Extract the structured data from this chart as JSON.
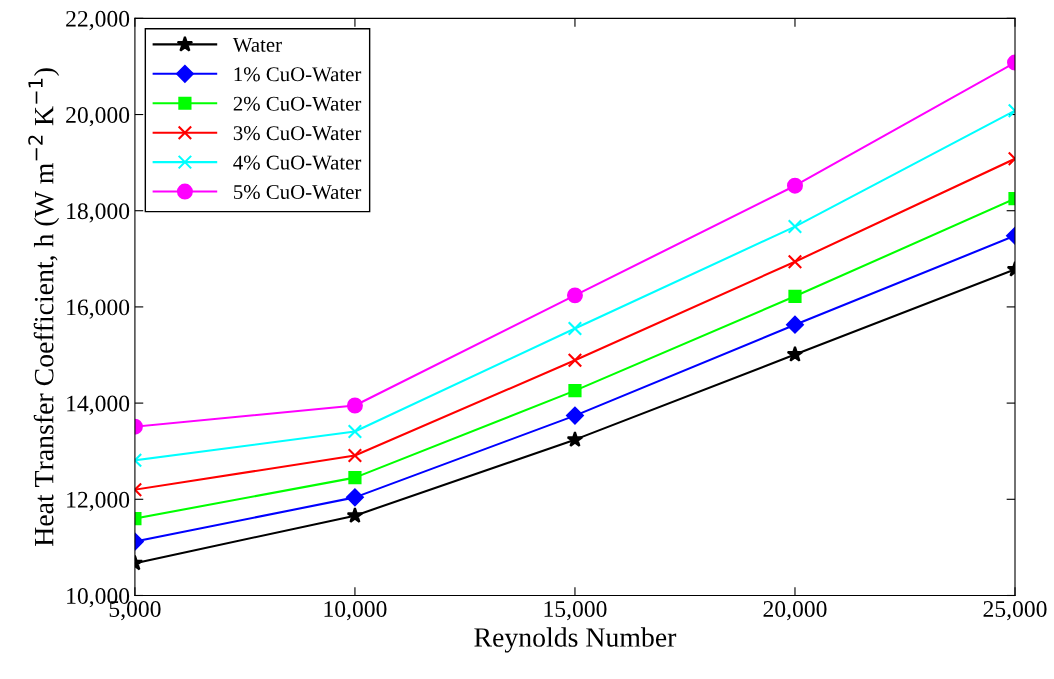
{
  "chart_data": {
    "type": "line",
    "xlabel": "Reynolds Number",
    "ylabel": "Heat Transfer Coefficient, h (W m$^{−2}$ K$^{−1}$)",
    "x": [
      5000,
      10000,
      15000,
      20000,
      25000
    ],
    "xlim": [
      5000,
      25000
    ],
    "xticks": [
      {
        "value": 5000,
        "label": "5,000"
      },
      {
        "value": 10000,
        "label": "10,000"
      },
      {
        "value": 15000,
        "label": "15,000"
      },
      {
        "value": 20000,
        "label": "20,000"
      },
      {
        "value": 25000,
        "label": "25,000"
      }
    ],
    "ylim": [
      10000,
      22000
    ],
    "yticks": [
      {
        "value": 10000,
        "label": "10,000"
      },
      {
        "value": 12000,
        "label": "12,000"
      },
      {
        "value": 14000,
        "label": "14,000"
      },
      {
        "value": 16000,
        "label": "16,000"
      },
      {
        "value": 18000,
        "label": "18,000"
      },
      {
        "value": 20000,
        "label": "20,000"
      },
      {
        "value": 22000,
        "label": "22,000"
      }
    ],
    "grid": false,
    "legend": "top left",
    "line_style": "solid",
    "series": [
      {
        "name": "Water",
        "color": "#000000",
        "marker": "star",
        "values": [
          10670,
          11660,
          13240,
          15010,
          16780
        ]
      },
      {
        "name": "1% CuO-Water",
        "color": "#0000ff",
        "marker": "diamond",
        "values": [
          11120,
          12040,
          13740,
          15630,
          17480
        ]
      },
      {
        "name": "2% CuO-Water",
        "color": "#00ff00",
        "marker": "square",
        "values": [
          11600,
          12450,
          14260,
          16220,
          18250
        ]
      },
      {
        "name": "3% CuO-Water",
        "color": "#ff0000",
        "marker": "cross",
        "values": [
          12200,
          12910,
          14890,
          16940,
          19080
        ]
      },
      {
        "name": "4% CuO-Water",
        "color": "#00ffff",
        "marker": "cross",
        "values": [
          12810,
          13410,
          15550,
          17670,
          20080
        ]
      },
      {
        "name": "5% CuO-Water",
        "color": "#ff00ff",
        "marker": "circle",
        "values": [
          13510,
          13950,
          16240,
          18520,
          21080
        ]
      }
    ]
  }
}
